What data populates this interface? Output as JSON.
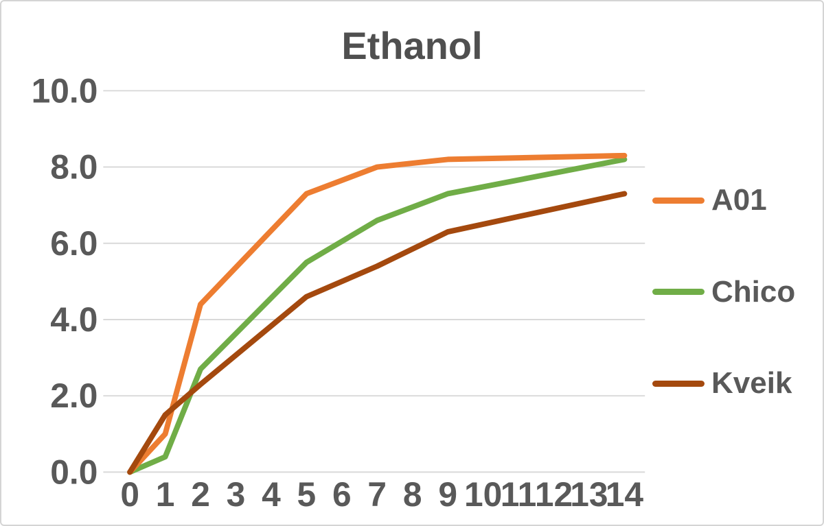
{
  "chart_data": {
    "type": "line",
    "title": "Ethanol",
    "xlabel": "",
    "ylabel": "",
    "categories": [
      0,
      1,
      2,
      3,
      4,
      5,
      6,
      7,
      8,
      9,
      10,
      11,
      12,
      13,
      14
    ],
    "x_tick_labels": [
      "0",
      "1",
      "2",
      "3",
      "4",
      "5",
      "6",
      "7",
      "8",
      "9",
      "10",
      "11",
      "12",
      "13",
      "14"
    ],
    "y_ticks": [
      0,
      2,
      4,
      6,
      8,
      10
    ],
    "y_tick_labels": [
      "0.0",
      "2.0",
      "4.0",
      "6.0",
      "8.0",
      "10.0"
    ],
    "ylim": [
      0,
      10
    ],
    "grid": "horizontal-only",
    "legend_position": "right",
    "series": [
      {
        "name": "A01",
        "color": "#ED7D31",
        "x": [
          0,
          1,
          2,
          5,
          7,
          9,
          14
        ],
        "values": [
          0.0,
          1.0,
          4.4,
          7.3,
          8.0,
          8.2,
          8.3
        ]
      },
      {
        "name": "Chico",
        "color": "#70AD47",
        "x": [
          0,
          1,
          2,
          5,
          7,
          9,
          14
        ],
        "values": [
          0.0,
          0.4,
          2.7,
          5.5,
          6.6,
          7.3,
          8.2
        ]
      },
      {
        "name": "Kveik",
        "color": "#A4490E",
        "x": [
          0,
          1,
          2,
          5,
          7,
          9,
          14
        ],
        "values": [
          0.0,
          1.5,
          2.3,
          4.6,
          5.4,
          6.3,
          7.3
        ]
      }
    ]
  },
  "colors": {
    "background": "#ffffff",
    "border": "#d4d4d4",
    "gridline": "#d9d9d9",
    "axis_text": "#595959",
    "title_text": "#4f4f4f"
  }
}
